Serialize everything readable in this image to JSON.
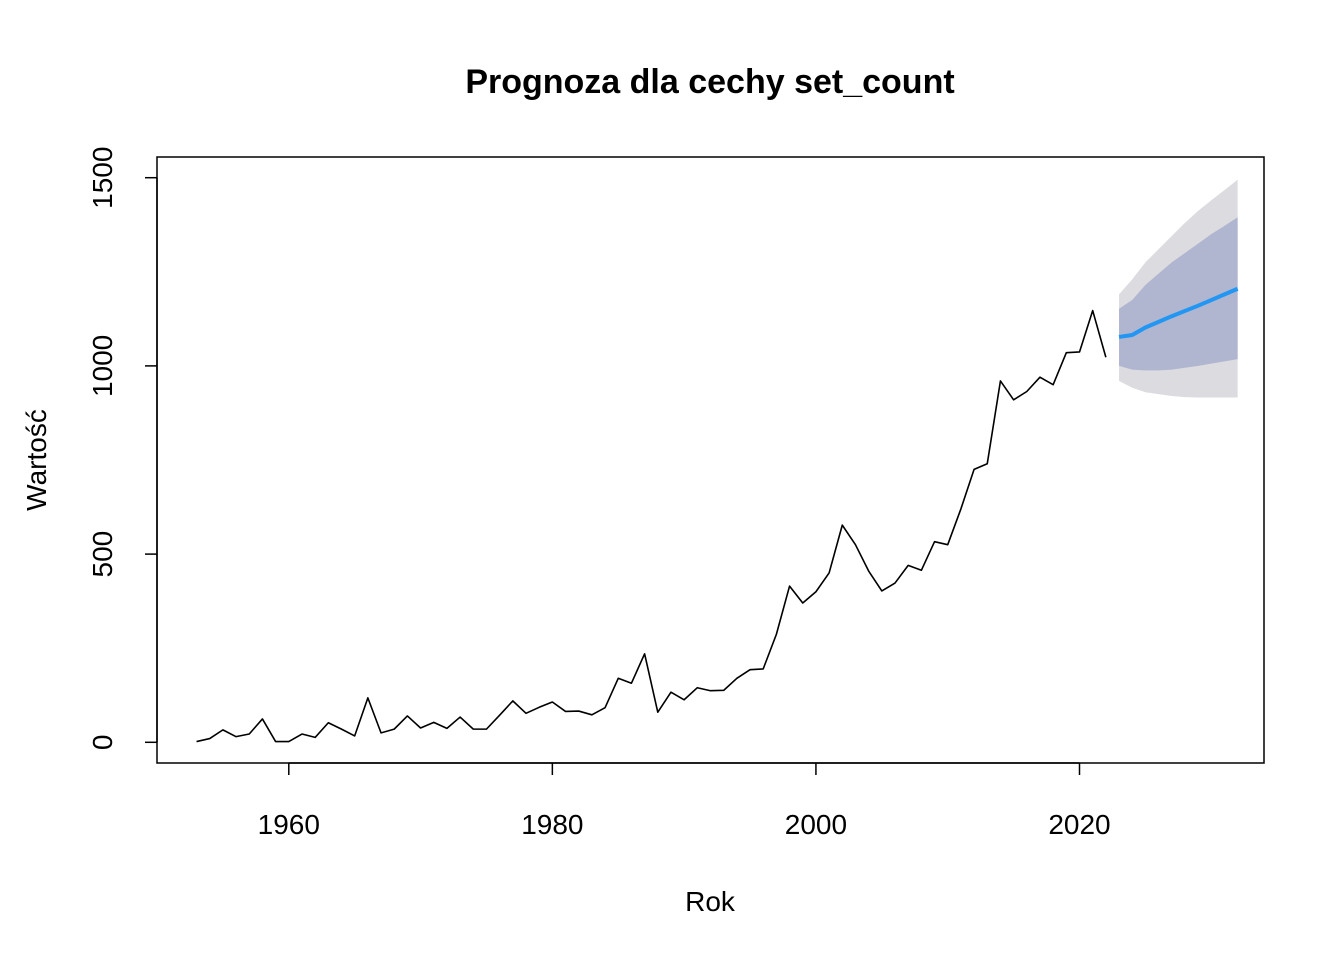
{
  "chart_data": {
    "type": "line",
    "title": "Prognoza dla cechy set_count",
    "xlabel": "Rok",
    "ylabel": "Wartość",
    "xlim": [
      1950,
      2034
    ],
    "ylim": [
      -55,
      1555
    ],
    "x_ticks": [
      1960,
      1980,
      2000,
      2020
    ],
    "y_ticks": [
      0,
      500,
      1000,
      1500
    ],
    "grid": false,
    "colors": {
      "history": "#000000",
      "forecast": "#2196F3",
      "band80": "#B0B5D0",
      "band95": "#DBDBE0"
    },
    "series": [
      {
        "x": [
          1953,
          1954,
          1955,
          1956,
          1957,
          1958,
          1959,
          1960,
          1961,
          1962,
          1963,
          1964,
          1965,
          1966,
          1967,
          1968,
          1969,
          1970,
          1971,
          1972,
          1973,
          1974,
          1975,
          1976,
          1977,
          1978,
          1979,
          1980,
          1981,
          1982,
          1983,
          1984,
          1985,
          1986,
          1987,
          1988,
          1989,
          1990,
          1991,
          1992,
          1993,
          1994,
          1995,
          1996,
          1997,
          1998,
          1999,
          2000,
          2001,
          2002,
          2003,
          2004,
          2005,
          2006,
          2007,
          2008,
          2009,
          2010,
          2011,
          2012,
          2013,
          2014,
          2015,
          2016,
          2017,
          2018,
          2019,
          2020,
          2021,
          2022
        ],
        "values": [
          2,
          10,
          33,
          15,
          22,
          62,
          2,
          2,
          22,
          13,
          52,
          35,
          17,
          118,
          25,
          35,
          70,
          38,
          53,
          37,
          67,
          35,
          35,
          72,
          110,
          77,
          93,
          107,
          82,
          83,
          73,
          92,
          170,
          157,
          235,
          80,
          133,
          113,
          145,
          137,
          138,
          170,
          193,
          195,
          287,
          415,
          370,
          400,
          450,
          577,
          525,
          455,
          402,
          423,
          470,
          457,
          533,
          525,
          620,
          725,
          740,
          960,
          910,
          932,
          970,
          950,
          1035,
          1037,
          1147,
          1023
        ]
      },
      {
        "x": [
          2023,
          2024,
          2025,
          2026,
          2027,
          2028,
          2029,
          2030,
          2031,
          2032
        ],
        "values": [
          1077,
          1082,
          1102,
          1117,
          1132,
          1146,
          1160,
          1175,
          1190,
          1205
        ]
      }
    ],
    "interval_80": {
      "x": [
        2023,
        2024,
        2025,
        2026,
        2027,
        2028,
        2029,
        2030,
        2031,
        2032
      ],
      "lower": [
        1000,
        990,
        988,
        988,
        990,
        995,
        1000,
        1006,
        1012,
        1018
      ],
      "upper": [
        1152,
        1175,
        1215,
        1245,
        1275,
        1300,
        1325,
        1350,
        1372,
        1395
      ]
    },
    "interval_95": {
      "x": [
        2023,
        2024,
        2025,
        2026,
        2027,
        2028,
        2029,
        2030,
        2031,
        2032
      ],
      "lower": [
        960,
        942,
        930,
        925,
        920,
        917,
        916,
        916,
        916,
        916
      ],
      "upper": [
        1190,
        1230,
        1275,
        1310,
        1345,
        1380,
        1412,
        1440,
        1467,
        1495
      ]
    }
  }
}
